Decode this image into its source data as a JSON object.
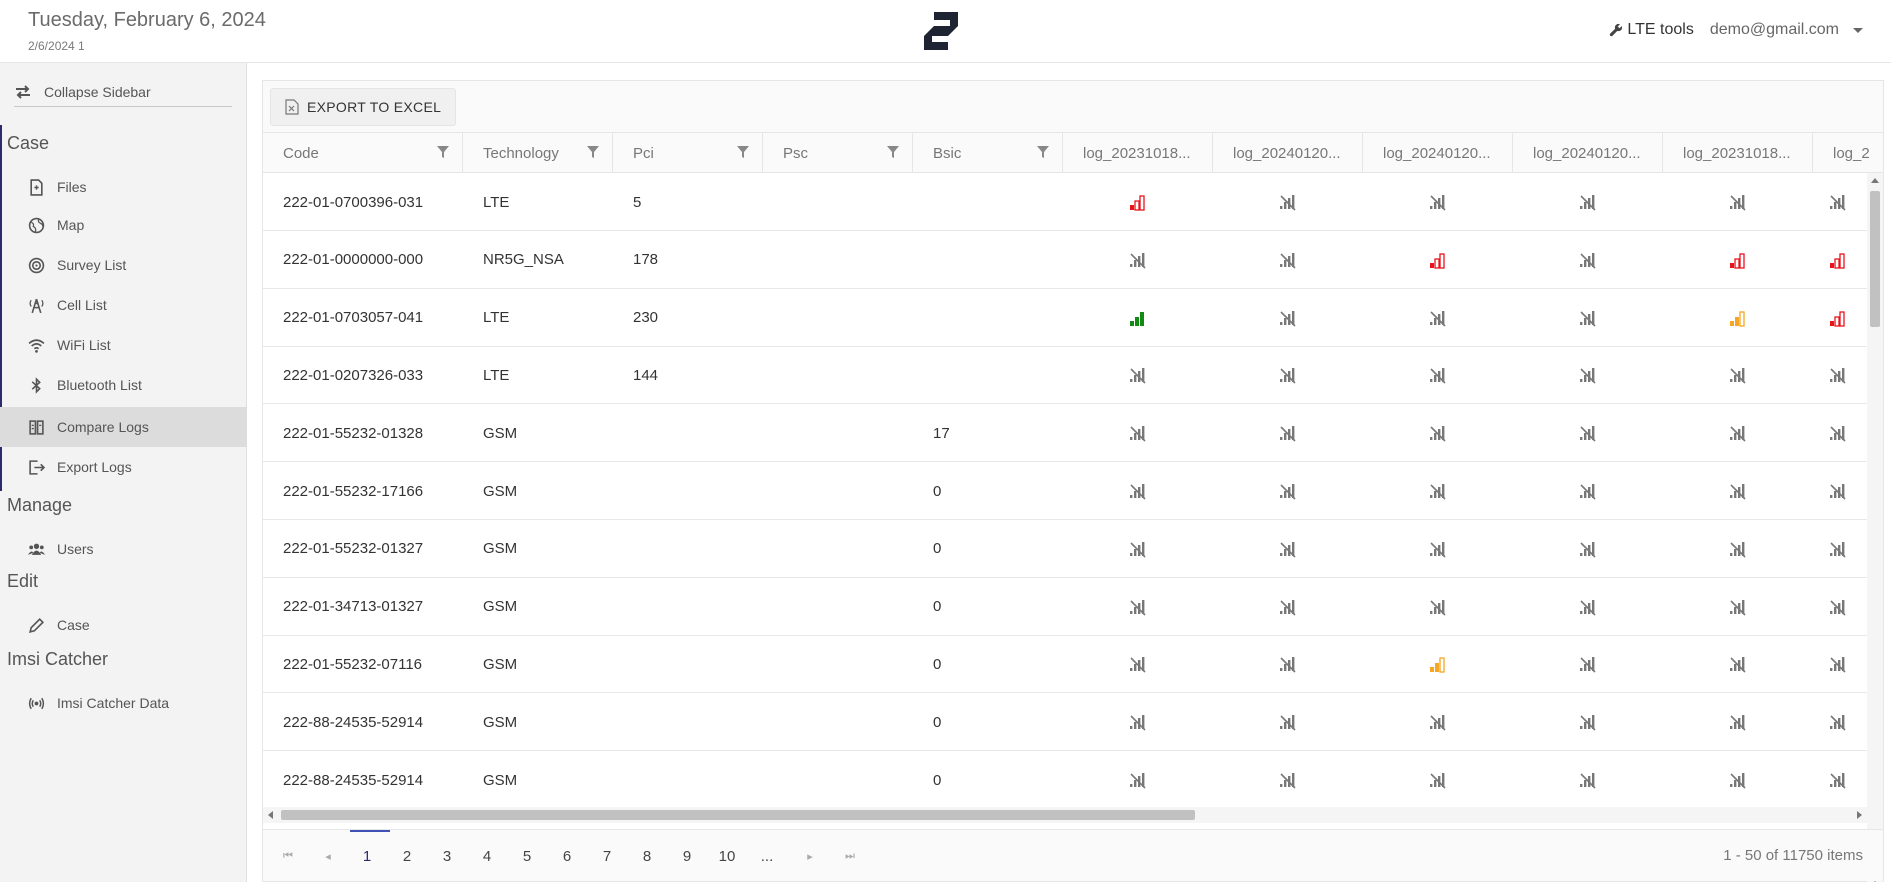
{
  "header": {
    "date": "Tuesday, February 6, 2024",
    "subtitle": "2/6/2024 1",
    "tools_label": "LTE tools",
    "user_email": "demo@gmail.com"
  },
  "sidebar": {
    "collapse_label": "Collapse Sidebar",
    "sections": {
      "case": "Case",
      "manage": "Manage",
      "edit": "Edit",
      "imsi": "Imsi Catcher"
    },
    "items": [
      {
        "label": "Files",
        "icon": "file-icon"
      },
      {
        "label": "Map",
        "icon": "globe-icon"
      },
      {
        "label": "Survey List",
        "icon": "target-icon"
      },
      {
        "label": "Cell List",
        "icon": "antenna-icon"
      },
      {
        "label": "WiFi List",
        "icon": "wifi-icon"
      },
      {
        "label": "Bluetooth List",
        "icon": "bluetooth-icon"
      },
      {
        "label": "Compare Logs",
        "icon": "compare-icon"
      },
      {
        "label": "Export Logs",
        "icon": "export-icon"
      },
      {
        "label": "Users",
        "icon": "users-icon"
      },
      {
        "label": "Case",
        "icon": "pencil-icon"
      },
      {
        "label": "Imsi Catcher Data",
        "icon": "broadcast-icon"
      }
    ]
  },
  "toolbar": {
    "export_label": "EXPORT TO EXCEL"
  },
  "grid": {
    "columns": [
      "Code",
      "Technology",
      "Pci",
      "Psc",
      "Bsic",
      "log_20231018...",
      "log_20240120...",
      "log_20240120...",
      "log_20240120...",
      "log_20231018...",
      "log_2"
    ],
    "rows": [
      {
        "code": "222-01-0700396-031",
        "tech": "LTE",
        "pci": "5",
        "psc": "",
        "bsic": "",
        "signals": [
          "red",
          "none",
          "none",
          "none",
          "none",
          "none"
        ]
      },
      {
        "code": "222-01-0000000-000",
        "tech": "NR5G_NSA",
        "pci": "178",
        "psc": "",
        "bsic": "",
        "signals": [
          "none",
          "none",
          "red",
          "none",
          "red",
          "red"
        ]
      },
      {
        "code": "222-01-0703057-041",
        "tech": "LTE",
        "pci": "230",
        "psc": "",
        "bsic": "",
        "signals": [
          "green",
          "none",
          "none",
          "none",
          "orange",
          "red"
        ]
      },
      {
        "code": "222-01-0207326-033",
        "tech": "LTE",
        "pci": "144",
        "psc": "",
        "bsic": "",
        "signals": [
          "none",
          "none",
          "none",
          "none",
          "none",
          "none"
        ]
      },
      {
        "code": "222-01-55232-01328",
        "tech": "GSM",
        "pci": "",
        "psc": "",
        "bsic": "17",
        "signals": [
          "none",
          "none",
          "none",
          "none",
          "none",
          "none"
        ]
      },
      {
        "code": "222-01-55232-17166",
        "tech": "GSM",
        "pci": "",
        "psc": "",
        "bsic": "0",
        "signals": [
          "none",
          "none",
          "none",
          "none",
          "none",
          "none"
        ]
      },
      {
        "code": "222-01-55232-01327",
        "tech": "GSM",
        "pci": "",
        "psc": "",
        "bsic": "0",
        "signals": [
          "none",
          "none",
          "none",
          "none",
          "none",
          "none"
        ]
      },
      {
        "code": "222-01-34713-01327",
        "tech": "GSM",
        "pci": "",
        "psc": "",
        "bsic": "0",
        "signals": [
          "none",
          "none",
          "none",
          "none",
          "none",
          "none"
        ]
      },
      {
        "code": "222-01-55232-07116",
        "tech": "GSM",
        "pci": "",
        "psc": "",
        "bsic": "0",
        "signals": [
          "none",
          "none",
          "orange",
          "none",
          "none",
          "none"
        ]
      },
      {
        "code": "222-88-24535-52914",
        "tech": "GSM",
        "pci": "",
        "psc": "",
        "bsic": "0",
        "signals": [
          "none",
          "none",
          "none",
          "none",
          "none",
          "none"
        ]
      },
      {
        "code": "222-88-24535-52914",
        "tech": "GSM",
        "pci": "",
        "psc": "",
        "bsic": "0",
        "signals": [
          "none",
          "none",
          "none",
          "none",
          "none",
          "none"
        ]
      }
    ]
  },
  "colors": {
    "red": "#e8141c",
    "orange": "#f5a623",
    "green": "#138a13",
    "none": "#777777",
    "accent": "#3f51b5"
  },
  "pager": {
    "pages": [
      "1",
      "2",
      "3",
      "4",
      "5",
      "6",
      "7",
      "8",
      "9",
      "10",
      "..."
    ],
    "current": "1",
    "info": "1 - 50 of 11750 items"
  }
}
